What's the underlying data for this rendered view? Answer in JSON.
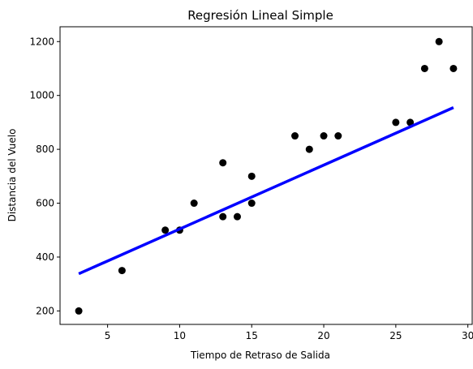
{
  "chart_data": {
    "type": "scatter",
    "title": "Regresión Lineal Simple",
    "xlabel": "Tiempo de Retraso de Salida",
    "ylabel": "Distancia del Vuelo",
    "xlim": [
      1.7,
      30.3
    ],
    "ylim": [
      150,
      1255
    ],
    "x_ticks": [
      5,
      10,
      15,
      20,
      25,
      30
    ],
    "y_ticks": [
      200,
      400,
      600,
      800,
      1000,
      1200
    ],
    "grid": false,
    "series": [
      {
        "type": "scatter",
        "color": "#000000",
        "points": [
          {
            "x": 3,
            "y": 200
          },
          {
            "x": 6,
            "y": 350
          },
          {
            "x": 9,
            "y": 500
          },
          {
            "x": 10,
            "y": 500
          },
          {
            "x": 11,
            "y": 600
          },
          {
            "x": 13,
            "y": 750
          },
          {
            "x": 13,
            "y": 550
          },
          {
            "x": 14,
            "y": 550
          },
          {
            "x": 15,
            "y": 700
          },
          {
            "x": 15,
            "y": 600
          },
          {
            "x": 18,
            "y": 850
          },
          {
            "x": 19,
            "y": 800
          },
          {
            "x": 20,
            "y": 850
          },
          {
            "x": 21,
            "y": 850
          },
          {
            "x": 25,
            "y": 900
          },
          {
            "x": 26,
            "y": 900
          },
          {
            "x": 27,
            "y": 1100
          },
          {
            "x": 28,
            "y": 1200
          },
          {
            "x": 29,
            "y": 1100
          }
        ]
      },
      {
        "type": "line",
        "color": "#0000ff",
        "points": [
          {
            "x": 3,
            "y": 338
          },
          {
            "x": 29,
            "y": 955
          }
        ]
      }
    ]
  }
}
